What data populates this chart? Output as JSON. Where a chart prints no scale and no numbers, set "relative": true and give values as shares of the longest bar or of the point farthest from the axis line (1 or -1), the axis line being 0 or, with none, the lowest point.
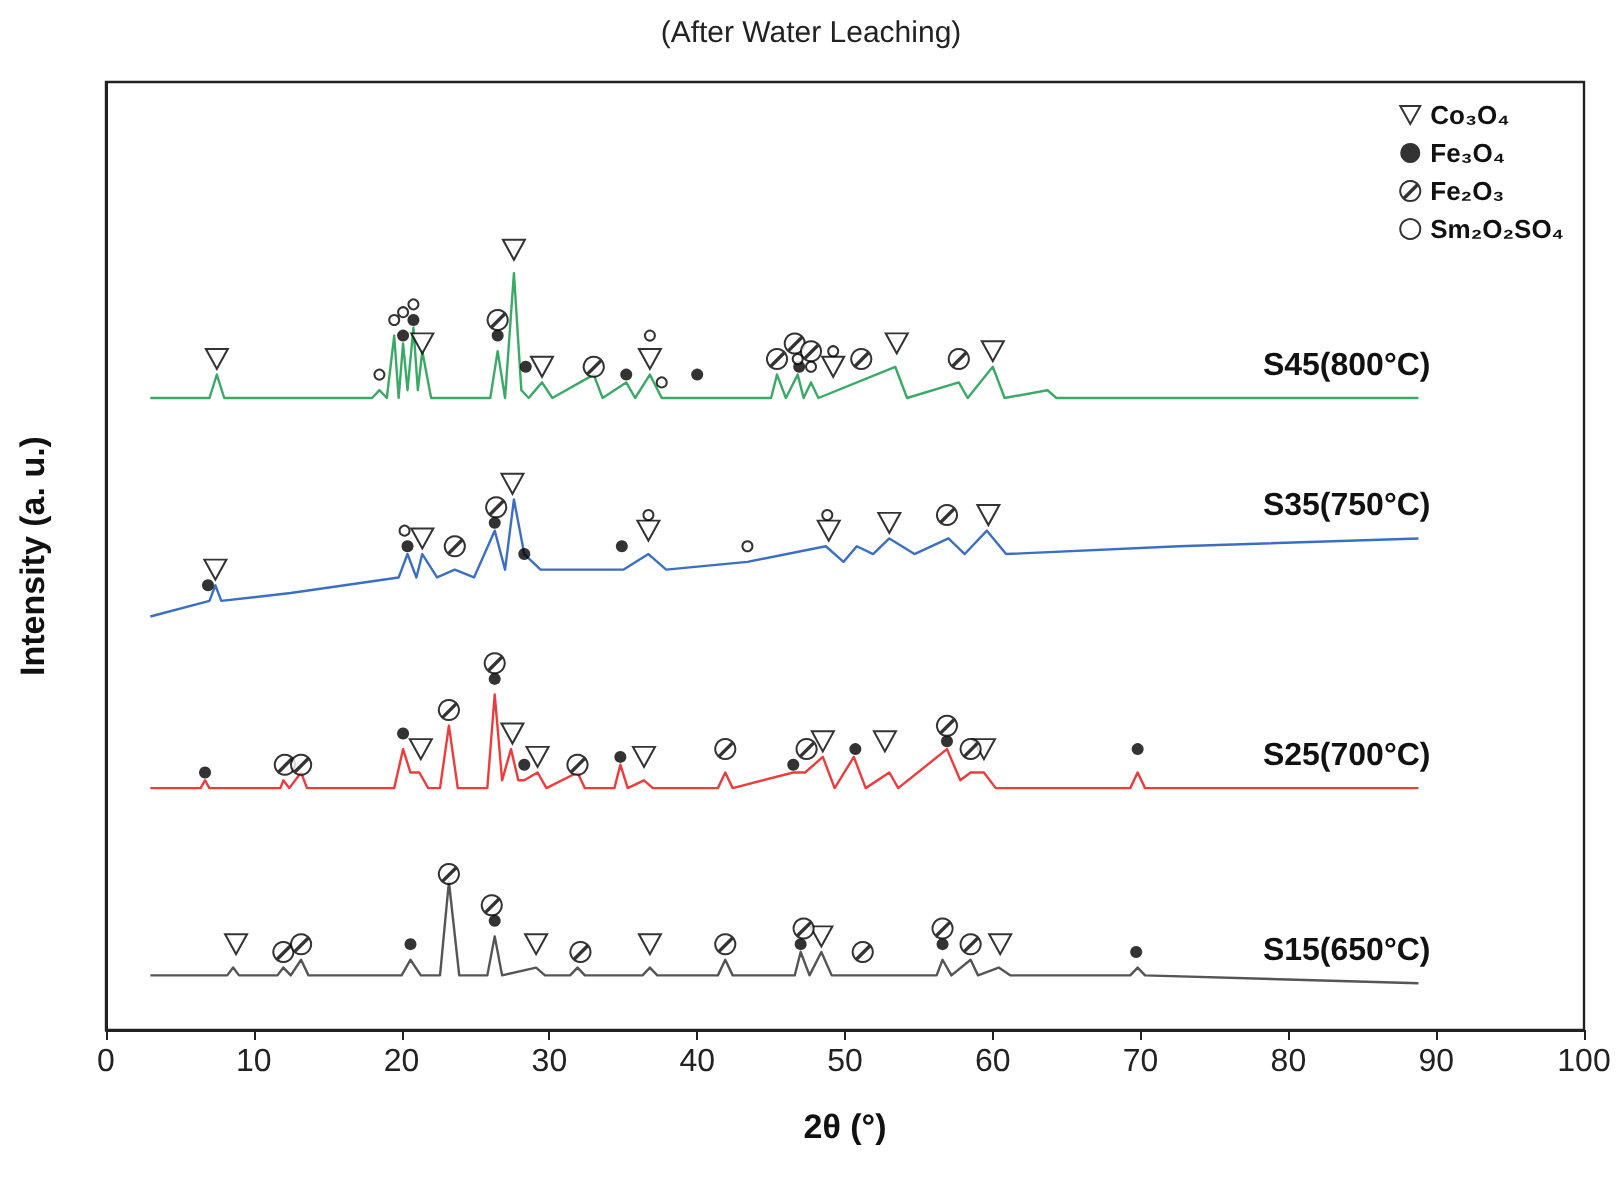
{
  "chart_data": {
    "type": "line",
    "title": "(After Water Leaching)",
    "xlabel": "2θ (°)",
    "ylabel": "Intensity (a. u.)",
    "relative": true,
    "xlim": [
      0,
      100
    ],
    "xticks": [
      0,
      10,
      20,
      30,
      40,
      50,
      60,
      70,
      80,
      90,
      100
    ],
    "legend": "top right",
    "grid": false,
    "series": [
      {
        "name": "S45(800°C)",
        "color": "#3aaa66",
        "x": [
          3.0,
          7.0,
          7.5,
          8.0,
          18.0,
          18.5,
          19.0,
          19.5,
          19.8,
          20.1,
          20.4,
          20.8,
          21.1,
          21.4,
          22.0,
          26.0,
          26.5,
          27.0,
          27.6,
          28.1,
          28.6,
          29.5,
          30.2,
          33.0,
          33.6,
          35.2,
          35.8,
          36.8,
          37.6,
          45.0,
          45.4,
          46.0,
          46.8,
          47.2,
          47.7,
          48.2,
          53.4,
          54.2,
          57.7,
          58.3,
          60.0,
          60.8,
          63.7,
          64.3,
          88.8
        ],
        "values": [
          0.81,
          0.81,
          0.84,
          0.81,
          0.81,
          0.82,
          0.81,
          0.89,
          0.81,
          0.88,
          0.82,
          0.9,
          0.82,
          0.87,
          0.81,
          0.81,
          0.87,
          0.81,
          0.97,
          0.82,
          0.81,
          0.83,
          0.81,
          0.84,
          0.81,
          0.83,
          0.81,
          0.84,
          0.81,
          0.81,
          0.84,
          0.81,
          0.84,
          0.81,
          0.83,
          0.81,
          0.85,
          0.81,
          0.83,
          0.81,
          0.85,
          0.81,
          0.82,
          0.81,
          0.81
        ]
      },
      {
        "name": "S35(750°C)",
        "color": "#3b6fc4",
        "x": [
          3.0,
          7.0,
          7.4,
          7.8,
          12.5,
          19.8,
          20.4,
          21.0,
          21.4,
          22.4,
          23.6,
          24.9,
          26.3,
          27.0,
          27.6,
          28.3,
          29.4,
          35.0,
          36.7,
          37.9,
          43.4,
          48.7,
          49.9,
          50.8,
          51.9,
          53.0,
          54.7,
          57.0,
          58.1,
          59.6,
          60.9,
          72.6,
          88.8
        ],
        "values": [
          0.53,
          0.55,
          0.57,
          0.55,
          0.56,
          0.58,
          0.61,
          0.58,
          0.61,
          0.58,
          0.59,
          0.58,
          0.64,
          0.59,
          0.68,
          0.61,
          0.59,
          0.59,
          0.61,
          0.59,
          0.6,
          0.62,
          0.6,
          0.62,
          0.61,
          0.63,
          0.61,
          0.63,
          0.61,
          0.64,
          0.61,
          0.62,
          0.63
        ]
      },
      {
        "name": "S25(700°C)",
        "color": "#ee3b3b",
        "x": [
          3.0,
          6.4,
          6.7,
          7.0,
          11.8,
          12.0,
          12.4,
          13.2,
          13.6,
          19.5,
          20.1,
          20.6,
          21.2,
          21.8,
          22.6,
          23.2,
          23.8,
          25.8,
          26.3,
          26.8,
          27.4,
          27.9,
          28.3,
          29.2,
          29.8,
          31.9,
          32.4,
          34.4,
          34.8,
          35.3,
          36.4,
          37.0,
          41.4,
          41.9,
          42.4,
          46.5,
          47.3,
          48.5,
          49.3,
          50.6,
          51.4,
          53.0,
          53.6,
          56.9,
          57.8,
          58.5,
          59.4,
          60.2,
          69.3,
          69.8,
          70.3,
          88.8
        ],
        "values": [
          0.31,
          0.31,
          0.32,
          0.31,
          0.31,
          0.32,
          0.31,
          0.33,
          0.31,
          0.31,
          0.36,
          0.33,
          0.33,
          0.31,
          0.31,
          0.39,
          0.31,
          0.31,
          0.43,
          0.32,
          0.36,
          0.32,
          0.32,
          0.33,
          0.31,
          0.33,
          0.31,
          0.31,
          0.34,
          0.31,
          0.32,
          0.31,
          0.31,
          0.33,
          0.31,
          0.33,
          0.33,
          0.35,
          0.31,
          0.35,
          0.31,
          0.33,
          0.31,
          0.36,
          0.32,
          0.33,
          0.33,
          0.31,
          0.31,
          0.33,
          0.31,
          0.31
        ]
      },
      {
        "name": "S15(650°C)",
        "color": "#555555",
        "x": [
          3.0,
          8.2,
          8.6,
          9.0,
          11.6,
          12.0,
          12.5,
          13.2,
          13.7,
          20.0,
          20.6,
          21.3,
          22.6,
          23.2,
          23.9,
          25.8,
          26.3,
          26.8,
          29.1,
          29.7,
          31.4,
          31.9,
          32.4,
          36.3,
          36.8,
          37.3,
          41.4,
          41.9,
          42.4,
          46.6,
          47.0,
          47.6,
          48.4,
          49.1,
          56.2,
          56.6,
          57.2,
          58.5,
          59.0,
          60.4,
          61.2,
          69.3,
          69.8,
          70.3,
          88.8
        ],
        "values": [
          0.07,
          0.07,
          0.08,
          0.07,
          0.07,
          0.08,
          0.07,
          0.09,
          0.07,
          0.07,
          0.09,
          0.07,
          0.07,
          0.19,
          0.07,
          0.07,
          0.12,
          0.07,
          0.08,
          0.07,
          0.07,
          0.08,
          0.07,
          0.07,
          0.08,
          0.07,
          0.07,
          0.09,
          0.07,
          0.07,
          0.1,
          0.07,
          0.1,
          0.07,
          0.07,
          0.09,
          0.07,
          0.09,
          0.07,
          0.08,
          0.07,
          0.07,
          0.08,
          0.07,
          0.06
        ]
      },
      {
        "name": "Co₃O₄",
        "type": "scatter",
        "marker": "triangle",
        "color": "#000000",
        "x": [
          7.5,
          21.4,
          27.6,
          29.5,
          36.8,
          49.2,
          53.5,
          60.0,
          7.4,
          21.4,
          27.5,
          36.7,
          48.9,
          53.0,
          59.7,
          21.3,
          27.5,
          29.2,
          36.4,
          48.5,
          52.7,
          59.4,
          8.8,
          29.1,
          36.8,
          48.4,
          60.5
        ],
        "values": [
          0.86,
          0.88,
          1.0,
          0.85,
          0.86,
          0.85,
          0.88,
          0.87,
          0.59,
          0.63,
          0.7,
          0.64,
          0.64,
          0.65,
          0.66,
          0.36,
          0.38,
          0.35,
          0.35,
          0.37,
          0.37,
          0.36,
          0.11,
          0.11,
          0.11,
          0.12,
          0.11
        ]
      },
      {
        "name": "Fe₃O₄",
        "type": "scatter",
        "marker": "circle",
        "color": "#000000",
        "x": [
          20.1,
          20.8,
          26.5,
          28.4,
          35.2,
          40.0,
          46.9,
          6.9,
          20.4,
          26.3,
          28.3,
          34.9,
          6.7,
          20.1,
          26.3,
          28.3,
          34.8,
          46.5,
          50.7,
          56.9,
          69.8,
          20.6,
          26.3,
          47.0,
          56.6,
          69.7
        ],
        "values": [
          0.89,
          0.91,
          0.89,
          0.85,
          0.84,
          0.84,
          0.85,
          0.57,
          0.62,
          0.65,
          0.61,
          0.62,
          0.33,
          0.38,
          0.45,
          0.34,
          0.35,
          0.34,
          0.36,
          0.37,
          0.36,
          0.11,
          0.14,
          0.11,
          0.11,
          0.1
        ]
      },
      {
        "name": "Fe₂O₃",
        "type": "scatter",
        "marker": "circle-slash",
        "color": "#000000",
        "x": [
          26.5,
          33.0,
          45.4,
          46.6,
          47.7,
          51.1,
          57.7,
          23.6,
          26.4,
          56.9,
          12.1,
          13.2,
          23.2,
          26.3,
          31.9,
          41.9,
          47.4,
          56.9,
          58.5,
          12.0,
          13.2,
          23.2,
          26.1,
          32.1,
          41.9,
          47.2,
          51.2,
          56.6,
          58.5
        ],
        "values": [
          0.91,
          0.85,
          0.86,
          0.88,
          0.87,
          0.86,
          0.86,
          0.62,
          0.67,
          0.66,
          0.34,
          0.34,
          0.41,
          0.47,
          0.34,
          0.36,
          0.36,
          0.39,
          0.36,
          0.1,
          0.11,
          0.2,
          0.16,
          0.1,
          0.11,
          0.13,
          0.1,
          0.13,
          0.11
        ]
      },
      {
        "name": "Sm₂O₂SO₄",
        "type": "scatter",
        "marker": "open-circle",
        "color": "#000000",
        "x": [
          18.5,
          19.5,
          20.1,
          20.8,
          36.8,
          37.6,
          46.8,
          47.7,
          49.2,
          20.2,
          36.7,
          43.4,
          48.8
        ],
        "values": [
          0.84,
          0.91,
          0.92,
          0.93,
          0.89,
          0.83,
          0.86,
          0.85,
          0.87,
          0.64,
          0.66,
          0.62,
          0.66
        ]
      }
    ]
  }
}
